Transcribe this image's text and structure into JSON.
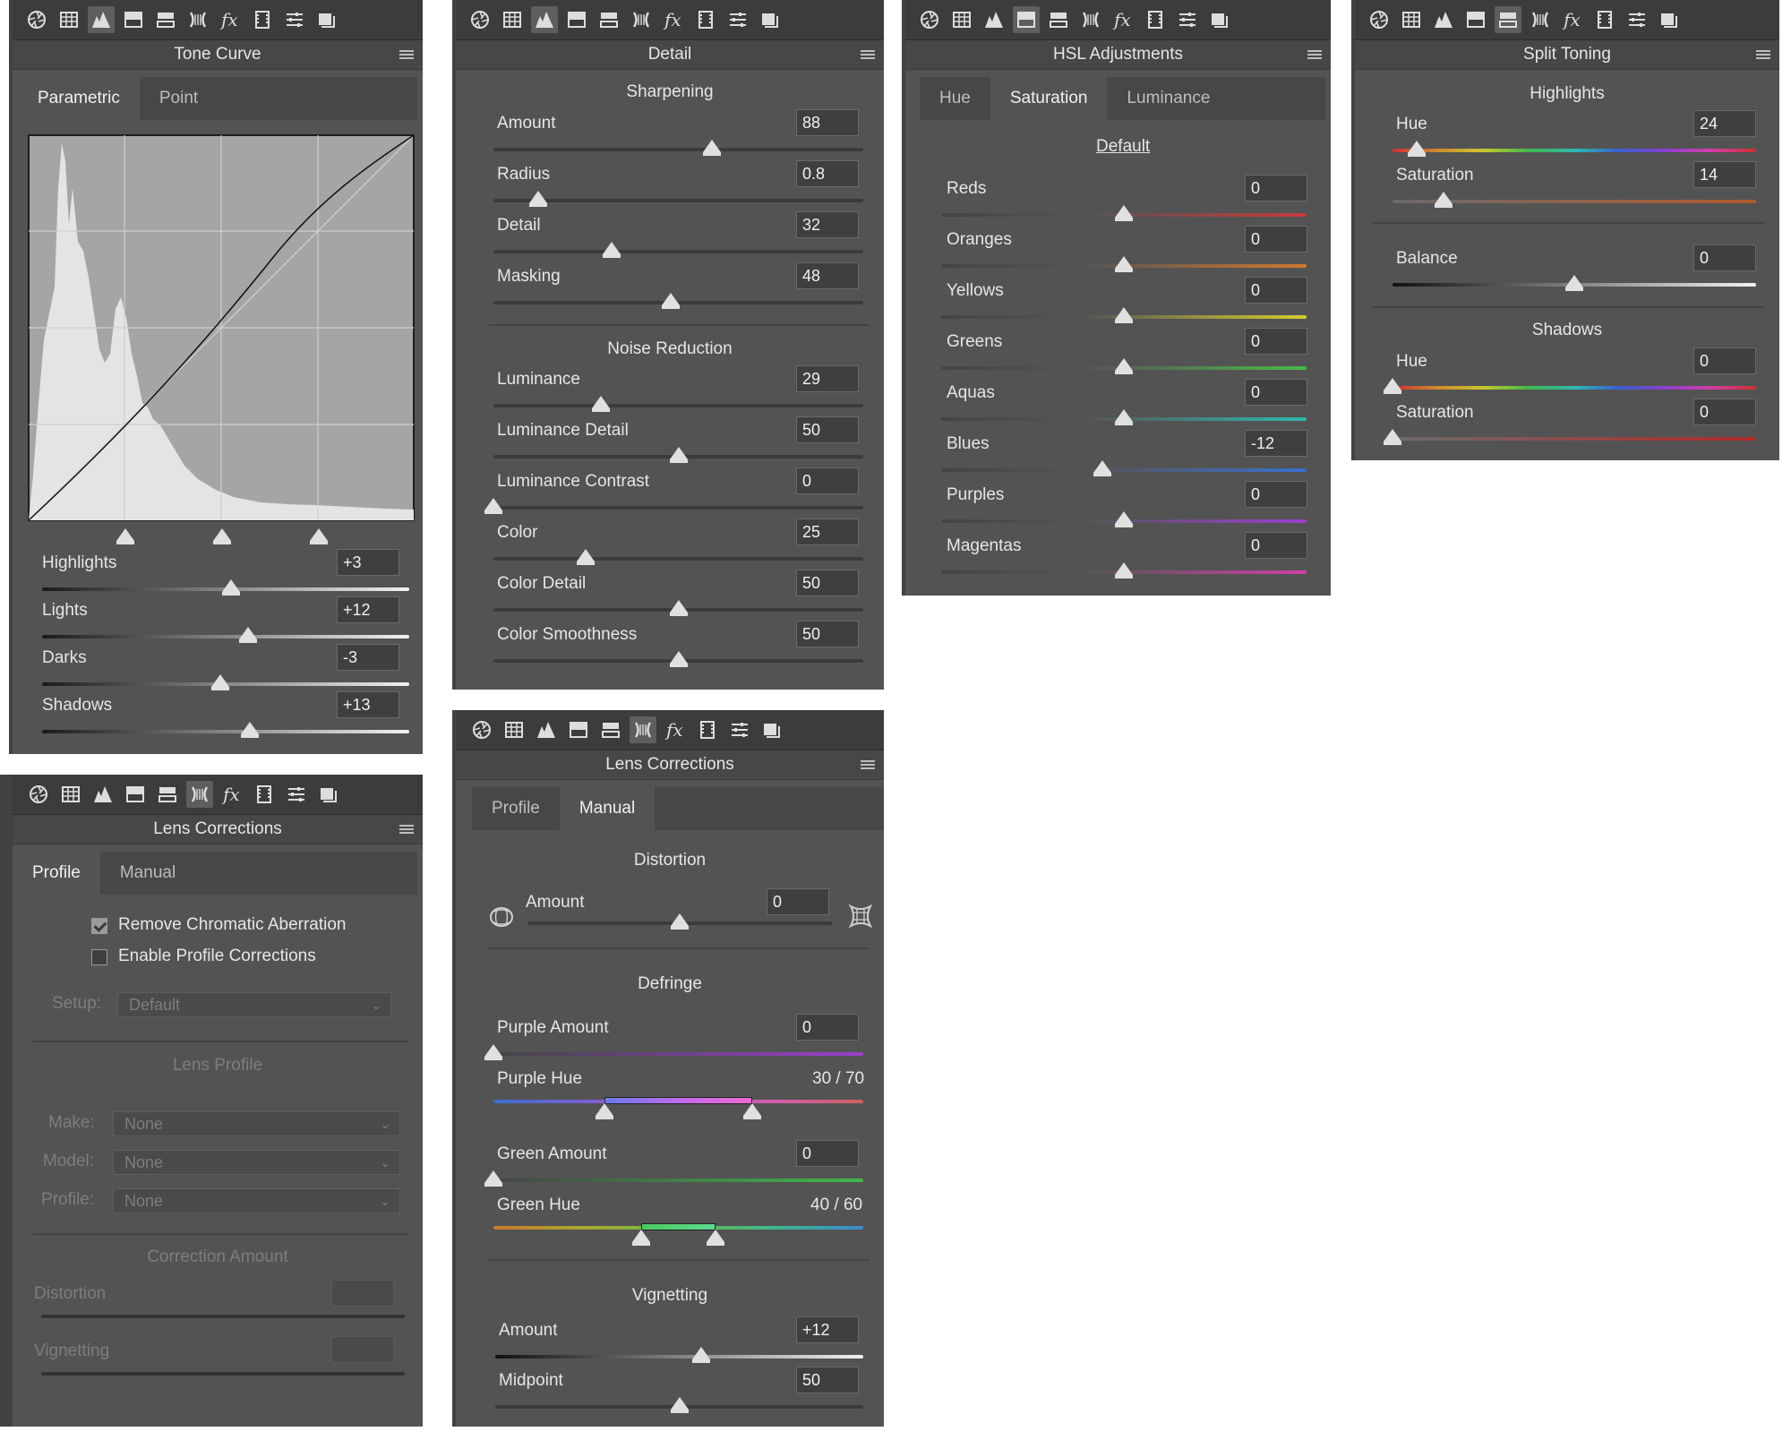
{
  "toolbar_icons": [
    "aperture-icon",
    "grid-icon",
    "tone-curve-icon",
    "hsl-icon",
    "split-toning-icon",
    "lens-icon",
    "fx-icon",
    "camera-calibration-icon",
    "presets-icon",
    "snapshots-icon"
  ],
  "tone_curve": {
    "title": "Tone Curve",
    "tabs": [
      "Parametric",
      "Point"
    ],
    "sliders": [
      {
        "label": "Highlights",
        "value": "+3",
        "level": 0.515
      },
      {
        "label": "Lights",
        "value": "+12",
        "level": 0.56
      },
      {
        "label": "Darks",
        "value": "-3",
        "level": 0.485
      },
      {
        "label": "Shadows",
        "value": "+13",
        "level": 0.565
      }
    ]
  },
  "detail": {
    "title": "Detail",
    "sharpening_title": "Sharpening",
    "sharpening": [
      {
        "label": "Amount",
        "value": "88",
        "level": 0.59
      },
      {
        "label": "Radius",
        "value": "0.8",
        "level": 0.12
      },
      {
        "label": "Detail",
        "value": "32",
        "level": 0.32
      },
      {
        "label": "Masking",
        "value": "48",
        "level": 0.48
      }
    ],
    "noise_title": "Noise Reduction",
    "noise": [
      {
        "label": "Luminance",
        "value": "29",
        "level": 0.29
      },
      {
        "label": "Luminance Detail",
        "value": "50",
        "level": 0.5
      },
      {
        "label": "Luminance Contrast",
        "value": "0",
        "level": 0.0
      },
      {
        "label": "Color",
        "value": "25",
        "level": 0.25
      },
      {
        "label": "Color Detail",
        "value": "50",
        "level": 0.5
      },
      {
        "label": "Color Smoothness",
        "value": "50",
        "level": 0.5
      }
    ]
  },
  "hsl": {
    "title": "HSL Adjustments",
    "tabs": [
      "Hue",
      "Saturation",
      "Luminance"
    ],
    "default_link": "Default",
    "sliders": [
      {
        "label": "Reds",
        "value": "0",
        "level": 0.5,
        "color": "#c8393a"
      },
      {
        "label": "Oranges",
        "value": "0",
        "level": 0.5,
        "color": "#d2782c"
      },
      {
        "label": "Yellows",
        "value": "0",
        "level": 0.5,
        "color": "#d6cc2e"
      },
      {
        "label": "Greens",
        "value": "0",
        "level": 0.5,
        "color": "#4cb848"
      },
      {
        "label": "Aquas",
        "value": "0",
        "level": 0.5,
        "color": "#2fb8b0"
      },
      {
        "label": "Blues",
        "value": "-12",
        "level": 0.44,
        "color": "#3a6fd0"
      },
      {
        "label": "Purples",
        "value": "0",
        "level": 0.5,
        "color": "#9a3fd0"
      },
      {
        "label": "Magentas",
        "value": "0",
        "level": 0.5,
        "color": "#d03fa8"
      }
    ]
  },
  "split_toning": {
    "title": "Split Toning",
    "highlights_title": "Highlights",
    "highlights": [
      {
        "label": "Hue",
        "value": "24",
        "level": 0.067
      },
      {
        "label": "Saturation",
        "value": "14",
        "level": 0.14
      }
    ],
    "balance": {
      "label": "Balance",
      "value": "0",
      "level": 0.5
    },
    "shadows_title": "Shadows",
    "shadows": [
      {
        "label": "Hue",
        "value": "0",
        "level": 0.0
      },
      {
        "label": "Saturation",
        "value": "0",
        "level": 0.0
      }
    ]
  },
  "lens_profile": {
    "title": "Lens Corrections",
    "tabs": [
      "Profile",
      "Manual"
    ],
    "checkboxes": [
      {
        "label": "Remove Chromatic Aberration",
        "checked": true
      },
      {
        "label": "Enable Profile Corrections",
        "checked": false
      }
    ],
    "setup_label": "Setup:",
    "setup_value": "Default",
    "lens_profile_title": "Lens Profile",
    "make_label": "Make:",
    "make_value": "None",
    "model_label": "Model:",
    "model_value": "None",
    "profile_label": "Profile:",
    "profile_value": "None",
    "correction_title": "Correction Amount",
    "distortion_label": "Distortion",
    "vignetting_label": "Vignetting"
  },
  "lens_manual": {
    "title": "Lens Corrections",
    "tabs": [
      "Profile",
      "Manual"
    ],
    "distortion_title": "Distortion",
    "distortion_amount": {
      "label": "Amount",
      "value": "0",
      "level": 0.5
    },
    "defringe_title": "Defringe",
    "purple_amount": {
      "label": "Purple Amount",
      "value": "0",
      "level": 0.0
    },
    "purple_hue": {
      "label": "Purple Hue",
      "value": "30 / 70",
      "low": 0.3,
      "high": 0.7
    },
    "green_amount": {
      "label": "Green Amount",
      "value": "0",
      "level": 0.0
    },
    "green_hue": {
      "label": "Green Hue",
      "value": "40 / 60",
      "low": 0.4,
      "high": 0.6
    },
    "vignetting_title": "Vignetting",
    "vig_amount": {
      "label": "Amount",
      "value": "+12",
      "level": 0.56
    },
    "vig_midpoint": {
      "label": "Midpoint",
      "value": "50",
      "level": 0.5
    }
  }
}
